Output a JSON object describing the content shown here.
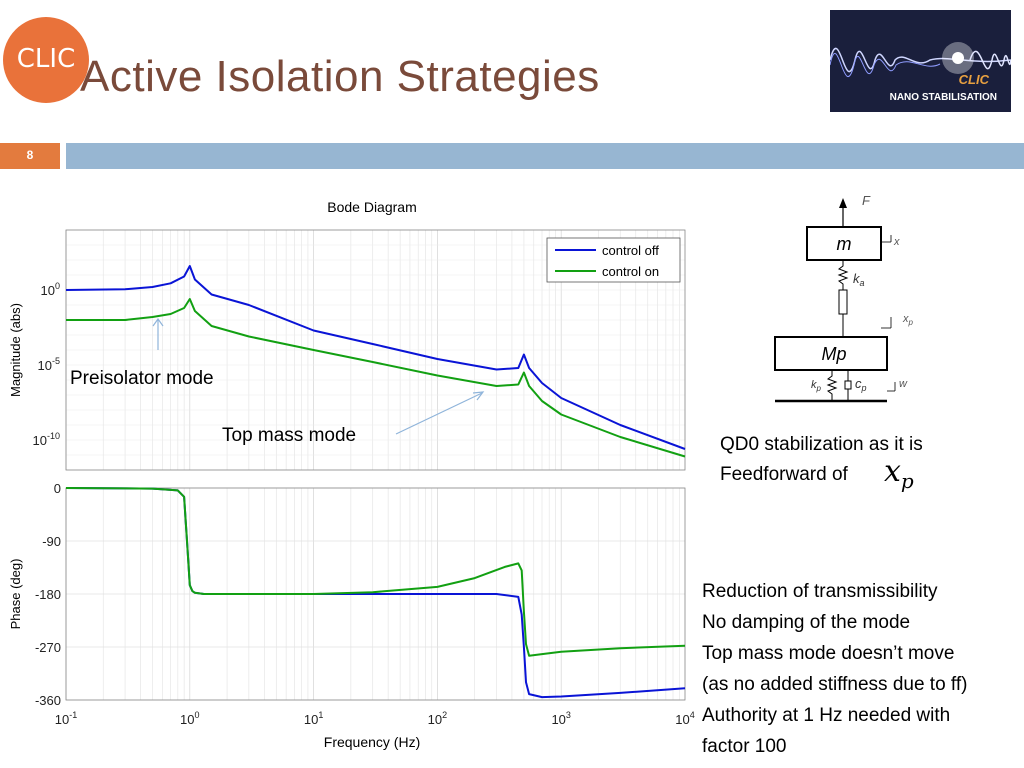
{
  "slide": {
    "title": "Active Isolation Strategies",
    "number": "8",
    "logo_text": "CLIC",
    "banner_logo": "CLIC",
    "banner_subtitle": "NANO STABILISATION"
  },
  "annotations": {
    "preisolator": "Preisolator mode",
    "top_mass": "Top mass mode"
  },
  "diagram": {
    "force": "F",
    "mass_top": "m",
    "x_top": "x",
    "spring_top": "k",
    "spring_top_sub": "a",
    "x_mid": "x",
    "x_mid_sub": "p",
    "mass_bottom": "Mp",
    "spring_bottom": "k",
    "spring_bottom_sub": "p",
    "damper": "c",
    "damper_sub": "p",
    "x_ground": "w"
  },
  "right_text": {
    "qd0_line1": "QD0 stabilization as it is",
    "qd0_line2": "Feedforward of",
    "xp_symbol": "x",
    "xp_sub": "p",
    "bullets": [
      "Reduction of transmissibility",
      "No damping of the mode",
      "Top mass mode doesn’t move",
      "(as no added stiffness due to ff)",
      "Authority at 1 Hz needed with",
      "factor 100"
    ]
  },
  "chart_data": {
    "type": "line",
    "title": "Bode Diagram",
    "xlabel": "Frequency  (Hz)",
    "xscale": "log",
    "xlim": [
      0.1,
      10000
    ],
    "x_ticks": [
      {
        "base": "10",
        "exp": "-1"
      },
      {
        "base": "10",
        "exp": "0"
      },
      {
        "base": "10",
        "exp": "1"
      },
      {
        "base": "10",
        "exp": "2"
      },
      {
        "base": "10",
        "exp": "3"
      },
      {
        "base": "10",
        "exp": "4"
      }
    ],
    "grid": true,
    "legend": {
      "placement": "top-right",
      "entries": [
        "control off",
        "control on"
      ]
    },
    "colors": {
      "control off": "#0a14d6",
      "control on": "#12a012"
    },
    "magnitude": {
      "ylabel": "Magnitude (abs)",
      "yscale": "log",
      "ylim_exp": [
        -12,
        4
      ],
      "y_ticks": [
        {
          "base": "10",
          "exp": "0",
          "value_exp": 0
        },
        {
          "base": "10",
          "exp": "-5",
          "value_exp": -5
        },
        {
          "base": "10",
          "exp": "-10",
          "value_exp": -10
        }
      ],
      "series": [
        {
          "name": "control off",
          "x": [
            0.1,
            0.3,
            0.5,
            0.7,
            0.9,
            1.0,
            1.1,
            1.5,
            3,
            10,
            30,
            100,
            300,
            450,
            500,
            550,
            700,
            1000,
            3000,
            10000
          ],
          "y_log10": [
            0.0,
            0.05,
            0.2,
            0.45,
            0.9,
            1.6,
            0.7,
            -0.3,
            -1.0,
            -2.7,
            -3.6,
            -4.6,
            -5.3,
            -5.2,
            -4.3,
            -5.2,
            -6.2,
            -7.2,
            -9.0,
            -10.6
          ]
        },
        {
          "name": "control on",
          "x": [
            0.1,
            0.3,
            0.5,
            0.7,
            0.9,
            1.0,
            1.1,
            1.5,
            3,
            10,
            30,
            100,
            300,
            450,
            500,
            550,
            700,
            1000,
            3000,
            10000
          ],
          "y_log10": [
            -2.0,
            -2.0,
            -1.8,
            -1.6,
            -1.2,
            -0.6,
            -1.4,
            -2.4,
            -3.1,
            -4.0,
            -4.8,
            -5.7,
            -6.4,
            -6.3,
            -5.5,
            -6.4,
            -7.4,
            -8.3,
            -9.8,
            -11.1
          ]
        }
      ]
    },
    "phase": {
      "ylabel": "Phase (deg)",
      "ylim": [
        -360,
        0
      ],
      "y_ticks": [
        "0",
        "-90",
        "-180",
        "-270",
        "-360"
      ],
      "series": [
        {
          "name": "control off",
          "x": [
            0.1,
            0.5,
            0.8,
            0.9,
            0.95,
            1.0,
            1.05,
            1.1,
            1.3,
            2,
            10,
            100,
            300,
            450,
            480,
            500,
            520,
            550,
            700,
            1000,
            3000,
            10000
          ],
          "y": [
            0,
            -1,
            -4,
            -15,
            -90,
            -165,
            -175,
            -178,
            -180,
            -180,
            -180,
            -180,
            -180,
            -185,
            -215,
            -270,
            -330,
            -350,
            -355,
            -354,
            -348,
            -340
          ]
        },
        {
          "name": "control on",
          "x": [
            0.1,
            0.5,
            0.8,
            0.9,
            0.95,
            1.0,
            1.05,
            1.1,
            1.3,
            2,
            10,
            30,
            100,
            200,
            350,
            450,
            480,
            500,
            520,
            550,
            700,
            1000,
            3000,
            10000
          ],
          "y": [
            0,
            -1,
            -4,
            -15,
            -90,
            -165,
            -175,
            -178,
            -180,
            -180,
            -180,
            -177,
            -168,
            -153,
            -134,
            -128,
            -140,
            -210,
            -265,
            -285,
            -282,
            -278,
            -272,
            -268
          ]
        }
      ]
    }
  }
}
